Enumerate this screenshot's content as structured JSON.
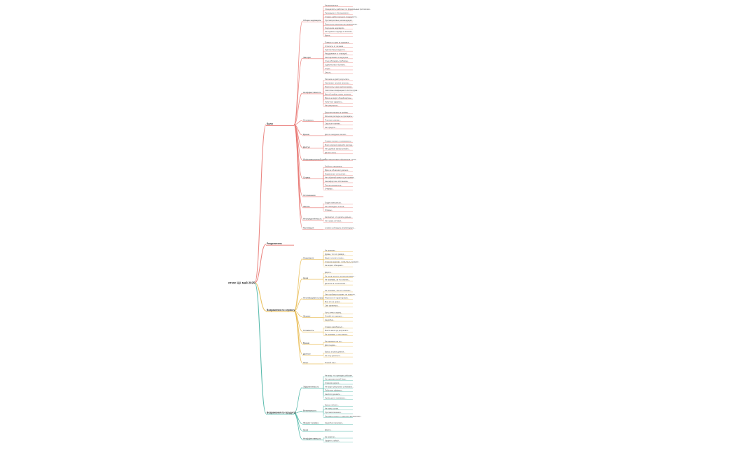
{
  "map": {
    "root": "отзос ЦА май 2025",
    "colors": {
      "red": "#e8736f",
      "orange": "#e8b84a",
      "green": "#3fb0a0",
      "text": "#333333"
    },
    "branches": [
      {
        "label": "Боли",
        "color": "red",
        "groups": [
          {
            "label": "Общее недоверие",
            "leaves": [
              "Неоднократные...",
              "Специалисты работают по формальным протоколам...",
              "Процедуры и обследования...",
              "Сложно найти хорошего специалиста...",
              "Противоречивые рекомендации...",
              "Результаты анализов интерпретируют...",
              "Ощущение недоверия...",
              "Нет единого подхода к лечению...",
              "Врачи..."
            ]
          },
          {
            "label": "Эмоции",
            "leaves": [
              "Тревога и страх за здоровье...",
              "Усталость от лечения...",
              "Чувство безысходности...",
              "Раздражение от очередей...",
              "Разочарование в медицине...",
              "Стыд обсуждать проблемы...",
              "Одиночество в болезни...",
              "Страх...",
              "Злость..."
            ]
          },
          {
            "label": "Неэффективность",
            "leaves": [
              "Лечение не даёт результата...",
              "Назначают лишние анализы...",
              "Результаты через долгое время...",
              "Симптомы возвращаются после курса...",
              "Долгий подбор схемы лечения...",
              "Врачи не видят общей картины...",
              "Побочные эффекты...",
              "Нет результата..."
            ]
          },
          {
            "label": "Стоимость",
            "leaves": [
              "Дорогие анализы и приёмы...",
              "Большие расходы на препараты...",
              "Платные клиники...",
              "Скрытые платежи...",
              "Нет средств..."
            ]
          },
          {
            "label": "Время",
            "leaves": [
              "Долгое ожидание записи..."
            ]
          },
          {
            "label": "Доступ",
            "leaves": [
              "Сложно попасть к специалисту...",
              "Мало хороших врачей в регионе...",
              "Нет удобной записи онлайн...",
              "Далеко ехать..."
            ]
          },
          {
            "label": "Информационный шум",
            "leaves": [
              "Противоречивая информация в сети..."
            ]
          },
          {
            "label": "Сервис",
            "leaves": [
              "Грубость персонала...",
              "Врач не объясняет диагноз...",
              "Формальное отношение...",
              "Нет обратной связи после приёма...",
              "Некомфортная обстановка...",
              "Потеря документов...",
              "Очереди..."
            ]
          },
          {
            "label": "Осложнения",
            "leaves": []
          },
          {
            "label": "Запись",
            "leaves": [
              "Трудно записаться...",
              "Нет свободных слотов...",
              "Отмены..."
            ]
          },
          {
            "label": "Неопределённость",
            "leaves": [
              "Непонятно, что делать дальше...",
              "Нет плана лечения..."
            ]
          },
          {
            "label": "Мотивация",
            "leaves": [
              "Сложно соблюдать рекомендации..."
            ]
          }
        ]
      },
      {
        "label": "Разделитель",
        "color": "red",
        "groups": []
      },
      {
        "label": "Возражения по сервису",
        "color": "orange",
        "groups": [
          {
            "label": "Недоверие",
            "leaves": [
              "Не доверяю...",
              "Думаю, что это развод...",
              "Видел плохие отзывы...",
              "Слишком красиво, чтобы быть правдой...",
              "Не верю в обещания..."
            ]
          },
          {
            "label": "Цена",
            "leaves": [
              "Дорого...",
              "Не готов платить за консультацию...",
              "Не понимаю, за что платить...",
              "Дешевле в поликлинике..."
            ]
          },
          {
            "label": "Неочевидная польза",
            "leaves": [
              "Не понимаю, чем это поможет...",
              "Уже пробовал похожее, не помогло...",
              "Результат не гарантирован...",
              "Мне это не нужно...",
              "Сам справлюсь..."
            ]
          },
          {
            "label": "Формат",
            "leaves": [
              "Хочу лично к врачу...",
              "Онлайн не подходит...",
              "Неудобно..."
            ]
          },
          {
            "label": "Сложность",
            "leaves": [
              "Сложно разобраться...",
              "Много шагов до результата...",
              "Не понимаю, с чего начать..."
            ]
          },
          {
            "label": "Время",
            "leaves": [
              "Нет времени на это...",
              "Долго ждать..."
            ]
          },
          {
            "label": "Данные",
            "leaves": [
              "Боюсь за свои данные...",
              "Не хочу делиться..."
            ]
          },
          {
            "label": "Опыт",
            "leaves": [
              "Плохой опыт..."
            ]
          }
        ]
      },
      {
        "label": "Возражения по продукту",
        "color": "green",
        "groups": [
          {
            "label": "Эффективность",
            "leaves": [
              "Не верю, что препарат работает...",
              "Нет доказательной базы...",
              "Слишком дорого...",
              "Не видел результата у знакомых...",
              "Побочные эффекты...",
              "Аналоги дешевле...",
              "Нужно долго принимать..."
            ]
          },
          {
            "label": "Безопасность",
            "leaves": [
              "Боюсь побочек...",
              "Не знаю состав...",
              "Противопоказания...",
              "Несовместимость с другими препаратами..."
            ]
          },
          {
            "label": "Формат приёма",
            "leaves": [
              "Неудобно принимать..."
            ]
          },
          {
            "label": "Цена",
            "leaves": [
              "Дорого..."
            ]
          },
          {
            "label": "Неэффективность",
            "leaves": [
              "Не помогло...",
              "Эффект слабый..."
            ]
          }
        ]
      }
    ]
  }
}
